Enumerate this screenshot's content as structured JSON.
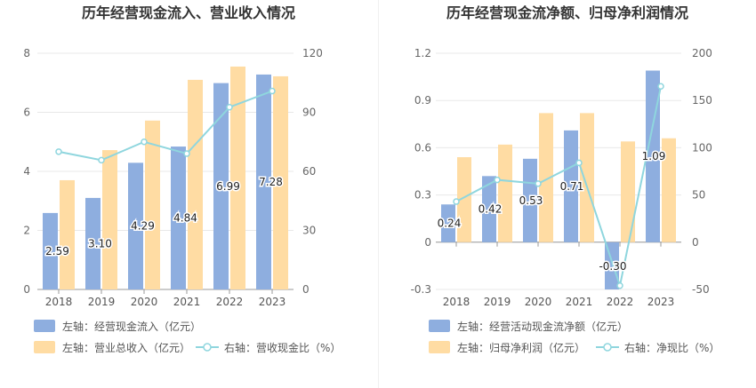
{
  "chart_data": [
    {
      "type": "bar",
      "title": "历年经营现金流入、营业收入情况",
      "categories": [
        "2018",
        "2019",
        "2020",
        "2021",
        "2022",
        "2023"
      ],
      "left_axis": {
        "ylim": [
          0,
          8
        ],
        "ticks": [
          "0",
          "2",
          "4",
          "6",
          "8"
        ]
      },
      "right_axis": {
        "ylim": [
          0,
          120
        ],
        "ticks": [
          "0",
          "30",
          "60",
          "90",
          "120"
        ]
      },
      "series": [
        {
          "name": "左轴：经营现金流入（亿元）",
          "kind": "bar",
          "axis": "left",
          "color": "#8eaedf",
          "values": [
            2.59,
            3.1,
            4.29,
            4.84,
            6.99,
            7.28
          ],
          "labels": [
            "2.59",
            "3.10",
            "4.29",
            "4.84",
            "6.99",
            "7.28"
          ]
        },
        {
          "name": "左轴：营业总收入（亿元）",
          "kind": "bar",
          "axis": "left",
          "color": "#ffdca3",
          "values": [
            3.7,
            4.72,
            5.72,
            7.1,
            7.55,
            7.22
          ]
        },
        {
          "name": "右轴：营收现金比（%）",
          "kind": "line",
          "axis": "right",
          "color": "#8fd6de",
          "values": [
            70,
            65.7,
            75,
            69,
            92.6,
            100.8
          ]
        }
      ]
    },
    {
      "type": "bar",
      "title": "历年经营现金流净额、归母净利润情况",
      "categories": [
        "2018",
        "2019",
        "2020",
        "2021",
        "2022",
        "2023"
      ],
      "left_axis": {
        "ylim": [
          -0.3,
          1.2
        ],
        "ticks": [
          "-0.3",
          "0",
          "0.3",
          "0.6",
          "0.9",
          "1.2"
        ]
      },
      "right_axis": {
        "ylim": [
          -50,
          200
        ],
        "ticks": [
          "-50",
          "0",
          "50",
          "100",
          "150",
          "200"
        ]
      },
      "series": [
        {
          "name": "左轴：经营活动现金流净额（亿元）",
          "kind": "bar",
          "axis": "left",
          "color": "#8eaedf",
          "values": [
            0.24,
            0.42,
            0.53,
            0.71,
            -0.3,
            1.09
          ],
          "labels": [
            "0.24",
            "0.42",
            "0.53",
            "0.71",
            "-0.30",
            "1.09"
          ]
        },
        {
          "name": "左轴：归母净利润（亿元）",
          "kind": "bar",
          "axis": "left",
          "color": "#ffdca3",
          "values": [
            0.54,
            0.62,
            0.82,
            0.82,
            0.64,
            0.66
          ]
        },
        {
          "name": "右轴：净现比（%）",
          "kind": "line",
          "axis": "right",
          "color": "#8fd6de",
          "values": [
            43,
            66,
            62,
            84,
            -46,
            165
          ]
        }
      ]
    }
  ]
}
